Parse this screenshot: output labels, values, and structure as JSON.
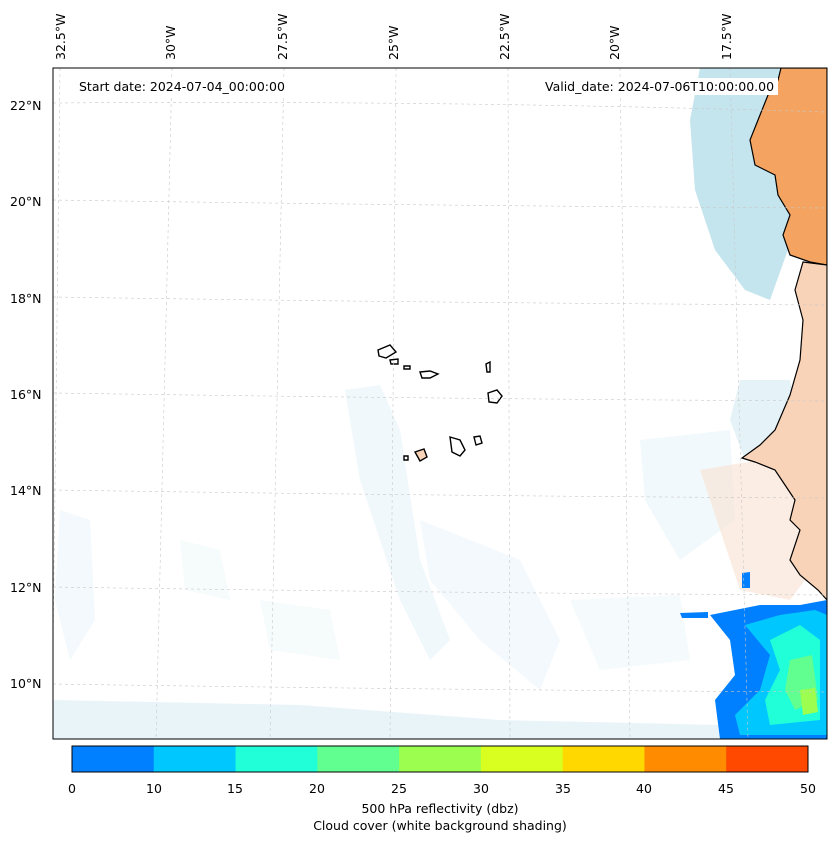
{
  "map": {
    "start_date": "Start date: 2024-07-04_00:00:00",
    "valid_date": "Valid_date: 2024-07-06T10:00:00.00",
    "lon_labels": [
      "32.5°W",
      "30°W",
      "27.5°W",
      "25°W",
      "22.5°W",
      "20°W",
      "17.5°W"
    ],
    "lat_labels": [
      "22°N",
      "20°N",
      "18°N",
      "16°N",
      "14°N",
      "12°N",
      "10°N"
    ],
    "land_color": "#f4a460",
    "cloud_color": "#add8e6"
  },
  "colorbar": {
    "ticks": [
      "0",
      "10",
      "15",
      "20",
      "25",
      "30",
      "35",
      "40",
      "45",
      "50"
    ],
    "colors": [
      "#0080ff",
      "#00c8ff",
      "#20ffd8",
      "#60ff90",
      "#9cff50",
      "#d8ff20",
      "#ffd800",
      "#ff8c00",
      "#ff4800"
    ],
    "label_line1": "500 hPa reflectivity (dbz)",
    "label_line2": "Cloud cover (white background shading)"
  }
}
